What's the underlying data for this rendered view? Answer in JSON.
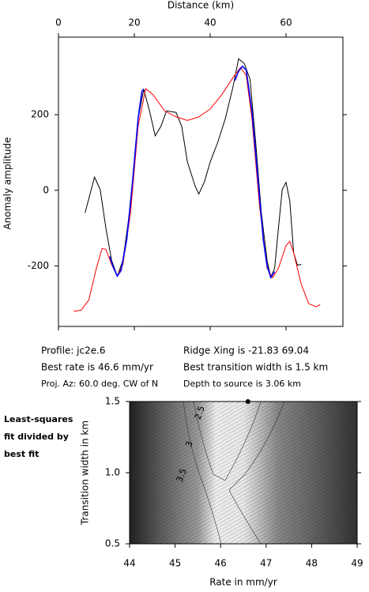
{
  "chart_data": [
    {
      "type": "line",
      "xlabel": "Distance (km)",
      "ylabel": "Anomaly amplitude",
      "xlim": [
        0,
        75
      ],
      "ylim": [
        -360,
        405
      ],
      "xticks": [
        0,
        20,
        40,
        60
      ],
      "yticks": [
        -200,
        0,
        200
      ],
      "series": [
        {
          "color": "#000000",
          "x": [
            7,
            9.5,
            11,
            12.5,
            14,
            15.5,
            17,
            19,
            21,
            22.5,
            24,
            25.5,
            27,
            28.5,
            31,
            32.5,
            34,
            36,
            37,
            38.5,
            40,
            42,
            44,
            46,
            47.5,
            49,
            50.5,
            52,
            53.5,
            55,
            56,
            57,
            58,
            59,
            60,
            61,
            62,
            63,
            64
          ],
          "values": [
            -60,
            35,
            2,
            -100,
            -185,
            -227,
            -185,
            -40,
            190,
            267,
            210,
            144,
            169,
            210,
            206,
            169,
            75,
            12,
            -10,
            23,
            75,
            127,
            190,
            273,
            348,
            335,
            294,
            127,
            -60,
            -185,
            -231,
            -206,
            -100,
            2,
            21,
            -29,
            -165,
            -198,
            -196
          ]
        },
        {
          "color": "#ff0000",
          "x": [
            4,
            6,
            8,
            10,
            11.5,
            12.5,
            14,
            15.5,
            17,
            19,
            21,
            23,
            25,
            28,
            31,
            34,
            37,
            40,
            43,
            46,
            48,
            49.5,
            51,
            53,
            55,
            56.5,
            58,
            60,
            61,
            62,
            64,
            66,
            68,
            69
          ],
          "values": [
            -320,
            -317,
            -290,
            -206,
            -154,
            -156,
            -196,
            -227,
            -196,
            -60,
            169,
            269,
            252,
            210,
            194,
            185,
            194,
            215,
            252,
            298,
            325,
            304,
            190,
            -40,
            -206,
            -231,
            -206,
            -146,
            -135,
            -165,
            -248,
            -300,
            -308,
            -302
          ]
        },
        {
          "color": "#0000ff",
          "x": [
            13.5,
            14.5,
            15.5,
            16.5,
            18,
            19.5,
            21,
            22,
            22.5,
            null,
            46.5,
            47.5,
            48.5,
            49.5,
            51,
            52.5,
            54,
            55,
            56,
            57
          ],
          "values": [
            -175,
            -205,
            -227,
            -212,
            -130,
            20,
            190,
            262,
            268,
            null,
            290,
            315,
            328,
            318,
            210,
            40,
            -130,
            -200,
            -231,
            -215
          ]
        }
      ]
    },
    {
      "type": "contour",
      "xlabel": "Rate in mm/yr",
      "ylabel": "Transition width in km",
      "xlim": [
        44,
        49
      ],
      "ylim": [
        0.5,
        1.5
      ],
      "xticks": [
        44,
        45,
        46,
        47,
        48,
        49
      ],
      "yticks": [
        {
          "value": 0.5,
          "label": "0.5"
        },
        {
          "value": 1.0,
          "label": "1.0"
        },
        {
          "value": 1.5,
          "label": "1.5"
        }
      ],
      "contour_labels": [
        {
          "level": 2.5,
          "x": 45.55,
          "y": 1.42
        },
        {
          "level": 3,
          "x": 45.32,
          "y": 1.2
        },
        {
          "level": 3.5,
          "x": 45.15,
          "y": 0.98
        }
      ],
      "best_fit": {
        "x": 46.6,
        "y": 1.5
      }
    }
  ],
  "profile_info": {
    "left": [
      "Profile: jc2e.6",
      "Best rate is 46.6 mm/yr",
      "Proj. Az: 60.0 deg. CW of N"
    ],
    "right": [
      "Ridge Xing is -21.83 69.04",
      "Best transition width is 1.5 km",
      "Depth to source is  3.06 km"
    ]
  },
  "side_label": [
    "Least-squares",
    "fit divided by",
    "best fit"
  ]
}
